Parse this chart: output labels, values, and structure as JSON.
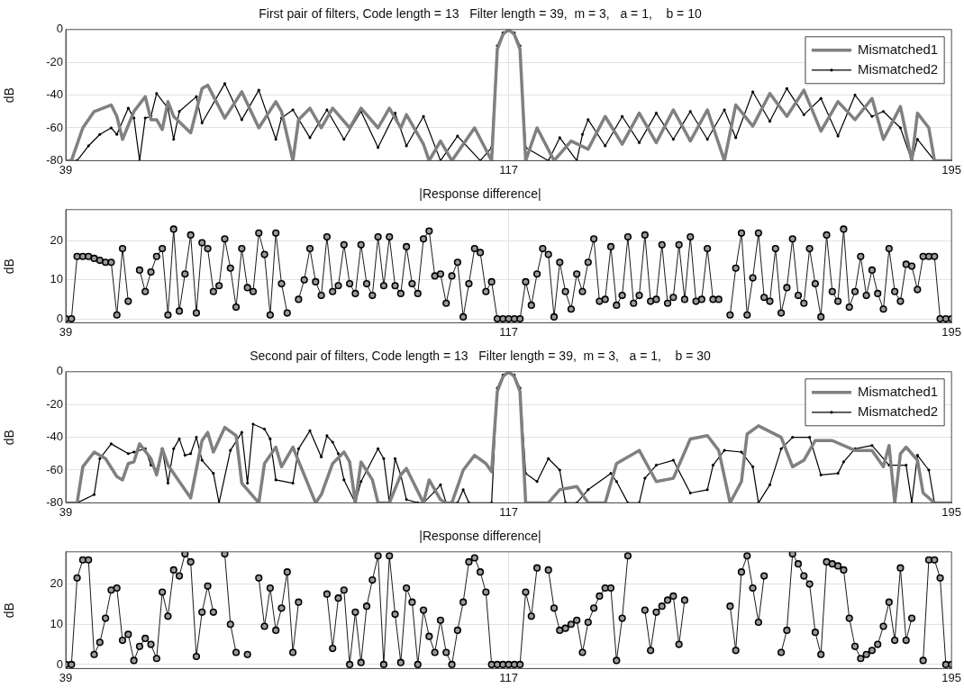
{
  "chart_data": [
    {
      "type": "line",
      "title": "First pair of filters, Code length = 13   Filter length = 39,  m = 3,   a = 1,    b = 10",
      "ylabel": "dB",
      "xlim": [
        39,
        195
      ],
      "xticks": [
        39,
        117,
        195
      ],
      "ylim": [
        -80,
        0
      ],
      "yticks": [
        -80,
        -60,
        -40,
        -20,
        0
      ],
      "grid": true,
      "legend": "top right",
      "series": [
        {
          "name": "Mismatched1",
          "color": "#808080",
          "marker": "none",
          "x": [
            39,
            40,
            42,
            44,
            47,
            48,
            49,
            51,
            53,
            54,
            55,
            56,
            57,
            58,
            61,
            63,
            64,
            67,
            70,
            73,
            76,
            77,
            79,
            80,
            82,
            84,
            86,
            89,
            91,
            94,
            96,
            98,
            99,
            102,
            103,
            105,
            107,
            111,
            114,
            115,
            116,
            117,
            118,
            119,
            120,
            122,
            125,
            128,
            131,
            134,
            137,
            140,
            143,
            146,
            149,
            152,
            155,
            157,
            160,
            163,
            166,
            169,
            172,
            175,
            178,
            181,
            183,
            186,
            188,
            189,
            191,
            192,
            195
          ],
          "values": [
            -80,
            -80,
            -60,
            -50,
            -46,
            -53,
            -67,
            -50,
            -41,
            -55,
            -55,
            -61,
            -44,
            -53,
            -63,
            -36,
            -34,
            -54,
            -38,
            -60,
            -44,
            -50,
            -80,
            -55,
            -48,
            -60,
            -48,
            -60,
            -48,
            -60,
            -48,
            -60,
            -52,
            -70,
            -80,
            -68,
            -80,
            -60,
            -80,
            -12,
            -3,
            0,
            -3,
            -12,
            -80,
            -60,
            -80,
            -68,
            -73,
            -53,
            -70,
            -51,
            -69,
            -49,
            -68,
            -49,
            -80,
            -46,
            -59,
            -39,
            -53,
            -37,
            -62,
            -44,
            -55,
            -42,
            -67,
            -47,
            -80,
            -51,
            -60,
            -80,
            -80
          ]
        },
        {
          "name": "Mismatched2",
          "color": "#000000",
          "marker": "circle",
          "x": [
            39,
            41,
            43,
            45,
            47,
            48,
            50,
            51,
            52,
            53,
            54,
            55,
            57,
            58,
            59,
            62,
            63,
            67,
            70,
            73,
            76,
            77,
            79,
            82,
            85,
            88,
            91,
            94,
            97,
            99,
            102,
            105,
            108,
            112,
            114,
            115,
            116,
            117,
            118,
            119,
            120,
            124,
            126,
            129,
            130,
            131,
            134,
            137,
            140,
            143,
            146,
            149,
            152,
            155,
            157,
            160,
            163,
            166,
            169,
            172,
            175,
            178,
            181,
            183,
            186,
            188,
            189,
            192,
            195
          ],
          "values": [
            -80,
            -80,
            -71,
            -64,
            -60,
            -64,
            -48,
            -54,
            -80,
            -54,
            -53,
            -39,
            -48,
            -67,
            -50,
            -41,
            -57,
            -33,
            -55,
            -37,
            -67,
            -54,
            -49,
            -66,
            -49,
            -67,
            -50,
            -72,
            -51,
            -71,
            -53,
            -80,
            -65,
            -80,
            -72,
            -10,
            -2,
            0,
            -2,
            -10,
            -72,
            -80,
            -66,
            -80,
            -64,
            -55,
            -71,
            -53,
            -69,
            -51,
            -67,
            -50,
            -67,
            -49,
            -66,
            -38,
            -56,
            -36,
            -52,
            -42,
            -65,
            -40,
            -53,
            -50,
            -60,
            -80,
            -67,
            -80,
            -80
          ]
        }
      ]
    },
    {
      "type": "line",
      "title": "|Response difference|",
      "ylabel": "dB",
      "xlim": [
        39,
        195
      ],
      "xticks": [
        39,
        117,
        195
      ],
      "ylim": [
        -1,
        28
      ],
      "yticks": [
        0,
        10,
        20
      ],
      "grid": true,
      "marker": "circle",
      "color": "#000000",
      "x": [
        39,
        40,
        41,
        42,
        43,
        44,
        45,
        46,
        47,
        48,
        49,
        50,
        51,
        52,
        53,
        54,
        55,
        56,
        57,
        58,
        59,
        60,
        61,
        62,
        63,
        64,
        65,
        66,
        67,
        68,
        69,
        70,
        71,
        72,
        73,
        74,
        75,
        76,
        77,
        78,
        79,
        80,
        81,
        82,
        83,
        84,
        85,
        86,
        87,
        88,
        89,
        90,
        91,
        92,
        93,
        94,
        95,
        96,
        97,
        98,
        99,
        100,
        101,
        102,
        103,
        104,
        105,
        106,
        107,
        108,
        109,
        110,
        111,
        112,
        113,
        114,
        115,
        116,
        117,
        118,
        119,
        120,
        121,
        122,
        123,
        124,
        125,
        126,
        127,
        128,
        129,
        130,
        131,
        132,
        133,
        134,
        135,
        136,
        137,
        138,
        139,
        140,
        141,
        142,
        143,
        144,
        145,
        146,
        147,
        148,
        149,
        150,
        151,
        152,
        153,
        154,
        155,
        156,
        157,
        158,
        159,
        160,
        161,
        162,
        163,
        164,
        165,
        166,
        167,
        168,
        169,
        170,
        171,
        172,
        173,
        174,
        175,
        176,
        177,
        178,
        179,
        180,
        181,
        182,
        183,
        184,
        185,
        186,
        187,
        188,
        189,
        190,
        191,
        192,
        193,
        194,
        195
      ],
      "values": [
        0,
        0,
        16,
        16,
        16,
        15.5,
        15,
        14.5,
        14.5,
        1,
        18,
        4.5,
        null,
        12.5,
        7,
        12,
        16,
        18,
        1,
        23,
        2,
        11.5,
        21.5,
        1.5,
        19.5,
        18,
        7,
        8.5,
        20.5,
        13,
        3,
        18,
        8,
        7,
        22,
        16.5,
        1,
        22,
        9,
        1.5,
        null,
        5,
        10,
        18,
        9.5,
        6,
        21,
        7,
        8.5,
        19,
        9,
        6.5,
        19,
        9,
        6,
        21,
        8.5,
        21,
        8.5,
        6.5,
        18.5,
        9,
        6.5,
        20.5,
        22.5,
        11,
        11.5,
        4,
        11,
        14.5,
        0.5,
        9,
        18,
        17,
        7,
        9.5,
        0,
        0,
        0,
        0,
        0,
        9.5,
        3.5,
        11.5,
        18,
        16.5,
        0.5,
        14.5,
        7,
        2.5,
        11.5,
        7,
        14.5,
        20.5,
        4.5,
        5,
        18.5,
        3.5,
        6,
        21,
        4,
        6,
        21.5,
        4.5,
        5,
        19,
        4,
        5.5,
        19,
        5,
        21,
        4.5,
        5,
        18,
        5,
        5,
        null,
        1,
        13,
        22,
        1,
        10.5,
        22,
        5.5,
        4.5,
        18,
        1.5,
        8,
        20.5,
        6,
        4,
        18,
        9,
        0.5,
        21.5,
        7,
        4.5,
        23,
        3,
        7,
        16,
        6,
        12.5,
        6.5,
        2.5,
        18,
        7,
        4.5,
        14,
        13.5,
        7.5,
        16,
        16,
        16,
        0,
        0,
        0
      ]
    },
    {
      "type": "line",
      "title": "Second pair of filters, Code length = 13   Filter length = 39,  m = 3,   a = 1,    b = 30",
      "ylabel": "dB",
      "xlim": [
        39,
        195
      ],
      "xticks": [
        39,
        117,
        195
      ],
      "ylim": [
        -80,
        0
      ],
      "yticks": [
        -80,
        -60,
        -40,
        -20,
        0
      ],
      "grid": true,
      "legend": "top right",
      "series": [
        {
          "name": "Mismatched1",
          "color": "#808080",
          "marker": "none",
          "x": [
            39,
            41,
            42,
            44,
            46,
            48,
            49,
            50,
            51,
            52,
            54,
            55,
            56,
            57,
            61,
            63,
            64,
            65,
            67,
            69,
            70,
            73,
            74,
            76,
            77,
            79,
            81,
            83,
            84,
            86,
            88,
            89,
            90,
            91,
            93,
            94,
            96,
            98,
            99,
            102,
            103,
            105,
            106,
            107,
            109,
            111,
            113,
            114,
            115,
            116,
            117,
            118,
            119,
            120,
            124,
            126,
            129,
            131,
            134,
            136,
            140,
            143,
            146,
            149,
            152,
            154,
            156,
            158,
            159,
            161,
            165,
            167,
            169,
            171,
            174,
            178,
            181,
            183,
            184,
            185,
            186,
            187,
            189,
            190,
            192,
            195
          ],
          "values": [
            -80,
            -80,
            -58,
            -49,
            -53,
            -64,
            -66,
            -56,
            -55,
            -44,
            -53,
            -63,
            -47,
            -57,
            -77,
            -42,
            -37,
            -49,
            -34,
            -39,
            -68,
            -80,
            -56,
            -46,
            -58,
            -46,
            -63,
            -80,
            -75,
            -56,
            -49,
            -55,
            -80,
            -55,
            -66,
            -80,
            -80,
            -63,
            -59,
            -80,
            -66,
            -78,
            -80,
            -80,
            -60,
            -51,
            -56,
            -61,
            -12,
            -3,
            0,
            -3,
            -12,
            -80,
            -80,
            -72,
            -70,
            -80,
            -80,
            -56,
            -48,
            -67,
            -65,
            -41,
            -39,
            -48,
            -80,
            -67,
            -38,
            -33,
            -40,
            -58,
            -54,
            -42,
            -42,
            -48,
            -48,
            -58,
            -45,
            -80,
            -50,
            -46,
            -54,
            -74,
            -80,
            -80
          ]
        },
        {
          "name": "Mismatched2",
          "color": "#000000",
          "marker": "circle",
          "x": [
            39,
            41,
            44,
            45,
            47,
            50,
            51,
            53,
            54,
            55,
            56,
            57,
            58,
            59,
            60,
            61,
            62,
            63,
            65,
            66,
            68,
            70,
            71,
            72,
            74,
            75,
            76,
            79,
            80,
            82,
            84,
            85,
            86,
            87,
            88,
            90,
            91,
            94,
            95,
            96,
            97,
            98,
            99,
            101,
            102,
            104,
            105,
            106,
            108,
            109,
            110,
            114,
            115,
            116,
            117,
            118,
            119,
            120,
            122,
            124,
            126,
            127,
            129,
            131,
            135,
            136,
            138,
            140,
            141,
            143,
            146,
            149,
            152,
            153,
            155,
            158,
            160,
            161,
            163,
            165,
            167,
            170,
            172,
            175,
            176,
            178,
            181,
            184,
            187,
            188,
            189,
            191,
            192,
            195
          ],
          "values": [
            -80,
            -80,
            -75,
            -53,
            -44,
            -50,
            -49,
            -47,
            -57,
            -60,
            -47,
            -68,
            -47,
            -41,
            -51,
            -50,
            -40,
            -54,
            -62,
            -80,
            -48,
            -37,
            -68,
            -32,
            -35,
            -41,
            -66,
            -68,
            -47,
            -36,
            -52,
            -39,
            -43,
            -50,
            -66,
            -80,
            -67,
            -47,
            -53,
            -80,
            -53,
            -63,
            -78,
            -80,
            -80,
            -73,
            -69,
            -80,
            -80,
            -72,
            -80,
            -80,
            -10,
            -2,
            0,
            -2,
            -10,
            -62,
            -67,
            -53,
            -60,
            -80,
            -80,
            -72,
            -62,
            -67,
            -80,
            -80,
            -65,
            -57,
            -54,
            -74,
            -72,
            -57,
            -48,
            -49,
            -58,
            -80,
            -69,
            -47,
            -40,
            -40,
            -63,
            -62,
            -55,
            -47,
            -45,
            -57,
            -57,
            -80,
            -51,
            -60,
            -80,
            -80
          ]
        }
      ]
    },
    {
      "type": "line",
      "title": "|Response difference|",
      "ylabel": "dB",
      "xlim": [
        39,
        195
      ],
      "xticks": [
        39,
        117,
        195
      ],
      "ylim": [
        -1,
        28
      ],
      "yticks": [
        0,
        10,
        20
      ],
      "grid": true,
      "marker": "circle",
      "color": "#000000",
      "x": [
        39,
        40,
        41,
        42,
        43,
        44,
        45,
        46,
        47,
        48,
        49,
        50,
        51,
        52,
        53,
        54,
        55,
        56,
        57,
        58,
        59,
        60,
        61,
        62,
        63,
        64,
        65,
        66,
        67,
        68,
        69,
        70,
        71,
        72,
        73,
        74,
        75,
        76,
        77,
        78,
        79,
        80,
        81,
        82,
        83,
        84,
        85,
        86,
        87,
        88,
        89,
        90,
        91,
        92,
        93,
        94,
        95,
        96,
        97,
        98,
        99,
        100,
        101,
        102,
        103,
        104,
        105,
        106,
        107,
        108,
        109,
        110,
        111,
        112,
        113,
        114,
        115,
        116,
        117,
        118,
        119,
        120,
        121,
        122,
        123,
        124,
        125,
        126,
        127,
        128,
        129,
        130,
        131,
        132,
        133,
        134,
        135,
        136,
        137,
        138,
        139,
        140,
        141,
        142,
        143,
        144,
        145,
        146,
        147,
        148,
        149,
        150,
        151,
        152,
        153,
        154,
        155,
        156,
        157,
        158,
        159,
        160,
        161,
        162,
        163,
        164,
        165,
        166,
        167,
        168,
        169,
        170,
        171,
        172,
        173,
        174,
        175,
        176,
        177,
        178,
        179,
        180,
        181,
        182,
        183,
        184,
        185,
        186,
        187,
        188,
        189,
        190,
        191,
        192,
        193,
        194,
        195
      ],
      "values": [
        0,
        0,
        21.5,
        26,
        26,
        2.5,
        5.5,
        11.5,
        18.5,
        19,
        6,
        7.5,
        1,
        4.5,
        6.5,
        5,
        1.5,
        18,
        12,
        23.5,
        22,
        27.5,
        25.5,
        2,
        13,
        19.5,
        13,
        null,
        27.5,
        10,
        3,
        null,
        2.5,
        null,
        21.5,
        9.5,
        19,
        8.5,
        14,
        23,
        3,
        15.5,
        null,
        null,
        null,
        null,
        17.5,
        4,
        16.5,
        18.5,
        0,
        13,
        0.5,
        14.5,
        21,
        27,
        0,
        27,
        12.5,
        0.5,
        19,
        15.5,
        0,
        13.5,
        7,
        3,
        11,
        3,
        0,
        8.5,
        15.5,
        25.5,
        26.5,
        23,
        18,
        0,
        0,
        0,
        0,
        0,
        0,
        18,
        12,
        24,
        null,
        23.5,
        14,
        8.5,
        9,
        10,
        11,
        3,
        10.5,
        14,
        17,
        19,
        19,
        1,
        11.5,
        27,
        null,
        null,
        13.5,
        3.5,
        13,
        14.5,
        16,
        17,
        5,
        16,
        null,
        null,
        null,
        null,
        null,
        null,
        null,
        14.5,
        3.5,
        23,
        27,
        19,
        10.5,
        22,
        null,
        null,
        3,
        8.5,
        27.5,
        25,
        22,
        20,
        8,
        2.5,
        25.5,
        25,
        24.5,
        23.5,
        11.5,
        4.5,
        1.5,
        2.5,
        3.5,
        5,
        9.5,
        15.5,
        6,
        24,
        6,
        11.5,
        null,
        1,
        26,
        26,
        21.5,
        0,
        0
      ]
    }
  ]
}
